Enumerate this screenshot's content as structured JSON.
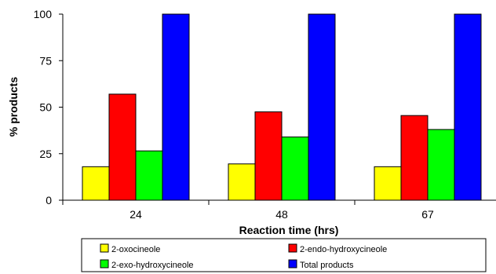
{
  "chart_data": {
    "type": "bar",
    "title": "",
    "xlabel": "Reaction time (hrs)",
    "ylabel": "% products",
    "categories": [
      "24",
      "48",
      "67"
    ],
    "ylim": [
      0,
      100
    ],
    "yticks": [
      "0",
      "25",
      "50",
      "75",
      "100"
    ],
    "grid": false,
    "legend_position": "bottom",
    "series": [
      {
        "name": "2-oxocineole",
        "color": "#ffff00",
        "values": [
          18,
          19.5,
          18
        ]
      },
      {
        "name": "2-endo-hydroxycineole",
        "color": "#ff0000",
        "values": [
          57,
          47.5,
          45.5
        ]
      },
      {
        "name": "2-exo-hydroxycineole",
        "color": "#00ff00",
        "values": [
          26.5,
          34,
          38
        ]
      },
      {
        "name": "Total products",
        "color": "#0000ff",
        "values": [
          100,
          100,
          100
        ]
      }
    ]
  }
}
